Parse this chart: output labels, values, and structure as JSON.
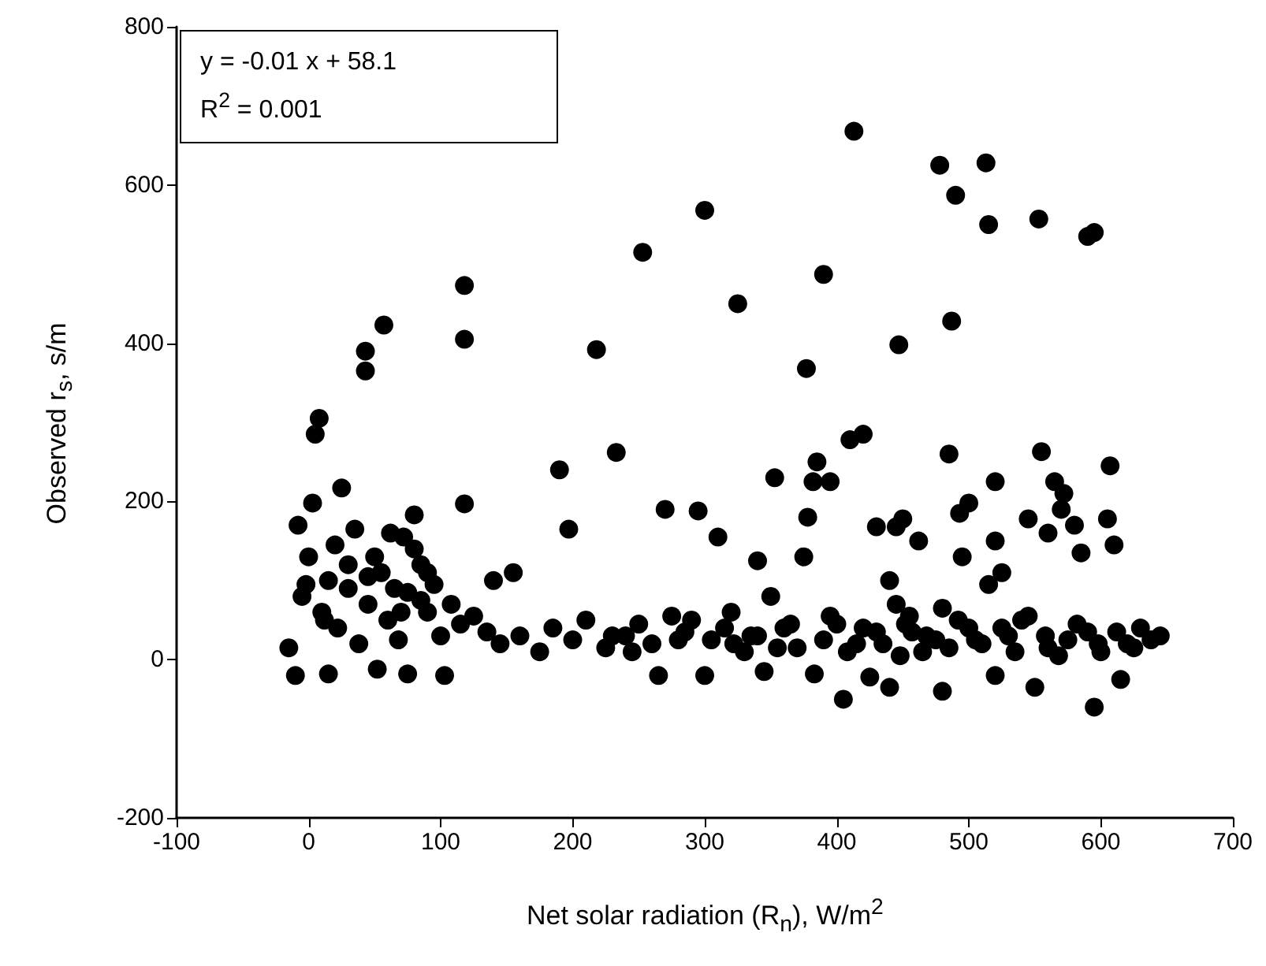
{
  "chart_data": {
    "type": "scatter",
    "xlabel": "Net solar radiation (R$_{n}$), W/m$^{2}$",
    "ylabel": "Observed r$_{s}$, s/m",
    "annotations": [
      "y = -0.01 x + 58.1",
      "R$^{2}$ = 0.001"
    ],
    "xlim": [
      -100,
      700
    ],
    "xticks": [
      -100,
      0,
      100,
      200,
      300,
      400,
      500,
      600,
      700
    ],
    "ylim": [
      -200,
      800
    ],
    "yticks": [
      -200,
      0,
      200,
      400,
      600,
      800
    ],
    "marker": "circle",
    "series": [
      {
        "color": "#000000",
        "x": [
          5,
          8,
          25,
          43,
          43,
          57,
          118,
          118,
          218,
          253,
          300,
          325,
          377,
          390,
          413,
          478,
          490,
          487,
          513,
          515,
          553,
          590,
          595,
          447,
          233,
          270,
          295,
          190,
          197,
          420,
          410,
          385,
          382,
          395,
          375,
          378,
          353,
          485,
          555,
          565,
          607,
          605,
          610,
          450,
          445,
          430,
          462,
          493,
          500,
          520,
          520,
          525,
          515,
          545,
          572,
          570,
          580,
          560,
          585,
          495,
          80,
          118,
          50,
          35,
          62,
          72,
          80,
          -8,
          3,
          20,
          155,
          140,
          440,
          445,
          480,
          457,
          310,
          340,
          350,
          322,
          -10,
          15,
          52,
          75,
          103,
          405,
          440,
          480,
          550,
          595,
          615,
          265,
          300,
          345,
          383,
          425,
          520,
          -15,
          -5,
          0,
          10,
          15,
          22,
          30,
          38,
          45,
          55,
          60,
          68,
          75,
          85,
          90,
          95,
          100,
          108,
          115,
          125,
          135,
          145,
          160,
          175,
          185,
          200,
          210,
          225,
          240,
          250,
          260,
          275,
          285,
          305,
          320,
          335,
          360,
          370,
          400,
          415,
          430,
          455,
          465,
          475,
          500,
          510,
          530,
          540,
          560,
          575,
          590,
          600,
          620,
          630,
          645,
          340,
          355,
          365,
          390,
          395,
          408,
          420,
          435,
          448,
          452,
          468,
          485,
          492,
          505,
          525,
          535,
          545,
          558,
          568,
          582,
          598,
          612,
          625,
          638,
          30,
          45,
          65,
          85,
          90,
          70,
          12,
          -2,
          230,
          245,
          290,
          315,
          330,
          280
        ],
        "values": [
          285,
          305,
          217,
          390,
          365,
          423,
          473,
          405,
          392,
          515,
          568,
          450,
          368,
          487,
          668,
          625,
          587,
          428,
          628,
          550,
          557,
          535,
          540,
          398,
          262,
          190,
          188,
          240,
          165,
          285,
          278,
          250,
          225,
          225,
          130,
          180,
          230,
          260,
          263,
          225,
          245,
          178,
          145,
          178,
          168,
          168,
          150,
          185,
          198,
          225,
          150,
          110,
          95,
          178,
          210,
          190,
          170,
          160,
          135,
          130,
          183,
          197,
          130,
          165,
          160,
          155,
          140,
          170,
          198,
          145,
          110,
          100,
          100,
          70,
          65,
          35,
          155,
          125,
          80,
          20,
          -20,
          -18,
          -12,
          -18,
          -20,
          -50,
          -35,
          -40,
          -35,
          -60,
          -25,
          -20,
          -20,
          -15,
          -18,
          -22,
          -20,
          15,
          80,
          130,
          60,
          100,
          40,
          90,
          20,
          70,
          110,
          50,
          25,
          85,
          120,
          60,
          95,
          30,
          70,
          45,
          55,
          35,
          20,
          30,
          10,
          40,
          25,
          50,
          15,
          30,
          45,
          20,
          55,
          35,
          25,
          60,
          30,
          40,
          15,
          45,
          20,
          35,
          55,
          10,
          25,
          40,
          20,
          30,
          50,
          15,
          25,
          35,
          10,
          20,
          40,
          30,
          30,
          15,
          45,
          25,
          55,
          10,
          40,
          20,
          5,
          45,
          30,
          15,
          50,
          25,
          40,
          10,
          55,
          30,
          5,
          45,
          20,
          35,
          15,
          25,
          120,
          105,
          90,
          75,
          110,
          60,
          50,
          95,
          30,
          10,
          50,
          40,
          10,
          25
        ]
      }
    ]
  }
}
